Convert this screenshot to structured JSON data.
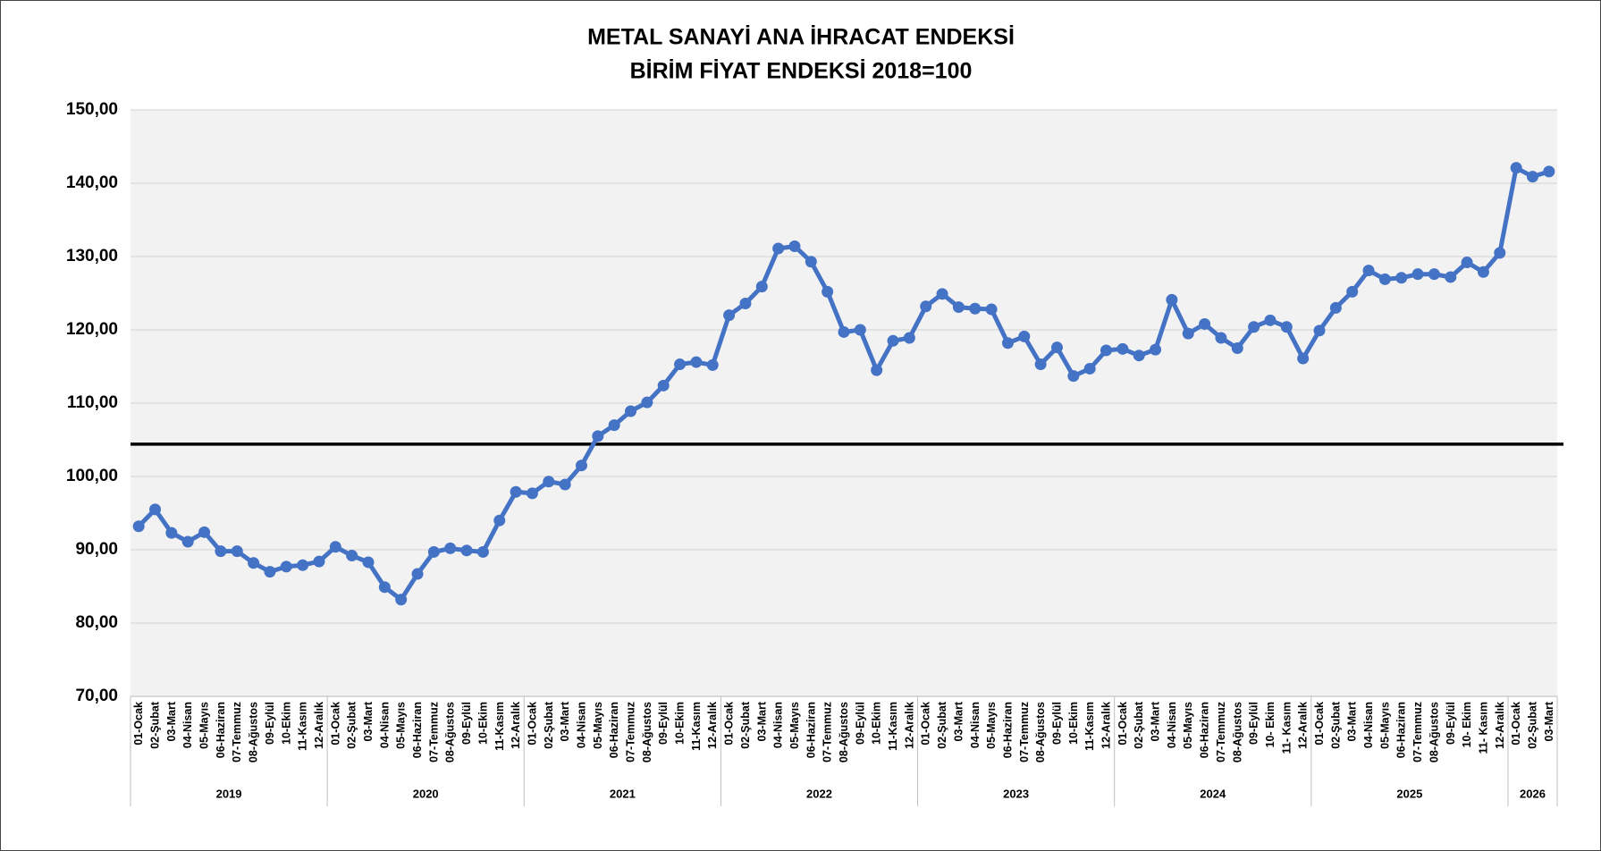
{
  "chart_data": {
    "type": "line",
    "title": [
      "METAL SANAYİ ANA İHRACAT ENDEKSİ",
      "BİRİM FİYAT ENDEKSİ 2018=100"
    ],
    "category_groups": [
      {
        "name": "2019",
        "categories": [
          "01-Ocak",
          "02-Şubat",
          "03-Mart",
          "04-Nisan",
          "05-Mayıs",
          "06-Haziran",
          "07-Temmuz",
          "08-Ağustos",
          "09-Eylül",
          "10-Ekim",
          "11-Kasım",
          "12-Aralık"
        ]
      },
      {
        "name": "2020",
        "categories": [
          "01-Ocak",
          "02-Şubat",
          "03-Mart",
          "04-Nisan",
          "05-Mayıs",
          "06-Haziran",
          "07-Temmuz",
          "08-Ağustos",
          "09-Eylül",
          "10-Ekim",
          "11-Kasım",
          "12-Aralık"
        ]
      },
      {
        "name": "2021",
        "categories": [
          "01-Ocak",
          "02-Şubat",
          "03-Mart",
          "04-Nisan",
          "05-Mayıs",
          "06-Haziran",
          "07-Temmuz",
          "08-Ağustos",
          "09-Eylül",
          "10-Ekim",
          "11-Kasım",
          "12-Aralık"
        ]
      },
      {
        "name": "2022",
        "categories": [
          "01-Ocak",
          "02-Şubat",
          "03-Mart",
          "04-Nisan",
          "05-Mayıs",
          "06-Haziran",
          "07-Temmuz",
          "08-Ağustos",
          "09-Eylül",
          "10-Ekim",
          "11-Kasım",
          "12-Aralık"
        ]
      },
      {
        "name": "2023",
        "categories": [
          "01-Ocak",
          "02-Şubat",
          "03-Mart",
          "04-Nisan",
          "05-Mayıs",
          "06-Haziran",
          "07-Temmuz",
          "08-Ağustos",
          "09-Eylül",
          "10-Ekim",
          "11-Kasım",
          "12-Aralık"
        ]
      },
      {
        "name": "2024",
        "categories": [
          "01-Ocak",
          "02-Şubat",
          "03-Mart",
          "04-Nisan",
          "05-Mayıs",
          "06-Haziran",
          "07-Temmuz",
          "08-Ağustos",
          "09-Eylül",
          "10- Ekim",
          "11- Kasım",
          "12-Aralık"
        ]
      },
      {
        "name": "2025",
        "categories": [
          "01-Ocak",
          "02-Şubat",
          "03-Mart",
          "04-Nisan",
          "05-Mayıs",
          "06-Haziran",
          "07-Temmuz",
          "08-Ağustos",
          "09-Eylül",
          "10- Ekim",
          "11- Kasım",
          "12-Aralık"
        ]
      },
      {
        "name": "2026",
        "categories": [
          "01-Ocak",
          "02-Şubat",
          "03-Mart"
        ]
      }
    ],
    "series": [
      {
        "color": "#4472c4",
        "values": [
          93.2,
          95.5,
          92.3,
          91.1,
          92.4,
          89.8,
          89.8,
          88.2,
          87.0,
          87.7,
          87.9,
          88.4,
          90.4,
          89.2,
          88.3,
          84.9,
          83.2,
          86.7,
          89.7,
          90.2,
          89.9,
          89.7,
          94.0,
          97.9,
          97.7,
          99.3,
          98.9,
          101.5,
          105.5,
          107.0,
          108.9,
          110.1,
          112.4,
          115.3,
          115.6,
          115.2,
          122.0,
          123.6,
          125.9,
          131.1,
          131.4,
          129.3,
          125.2,
          119.7,
          120.0,
          114.5,
          118.5,
          118.9,
          123.2,
          124.9,
          123.1,
          122.9,
          122.8,
          118.2,
          119.1,
          115.3,
          117.6,
          113.7,
          114.7,
          117.2,
          117.4,
          116.5,
          117.3,
          124.1,
          119.5,
          120.8,
          118.9,
          117.5,
          120.4,
          121.3,
          120.4,
          116.1,
          119.9,
          123.0,
          125.2,
          128.1,
          126.9,
          127.1,
          127.6,
          127.6,
          127.2,
          129.2,
          127.9,
          130.5,
          142.1,
          140.9,
          141.6
        ]
      }
    ],
    "reference_line": {
      "value": 104.4,
      "color": "#000000"
    },
    "ylim": [
      70,
      150
    ],
    "yticks": [
      {
        "value": 70,
        "label": "70,00"
      },
      {
        "value": 80,
        "label": "80,00"
      },
      {
        "value": 90,
        "label": "90,00"
      },
      {
        "value": 100,
        "label": "100,00"
      },
      {
        "value": 110,
        "label": "110,00"
      },
      {
        "value": 120,
        "label": "120,00"
      },
      {
        "value": 130,
        "label": "130,00"
      },
      {
        "value": 140,
        "label": "140,00"
      },
      {
        "value": 150,
        "label": "150,00"
      }
    ],
    "grid": true
  }
}
